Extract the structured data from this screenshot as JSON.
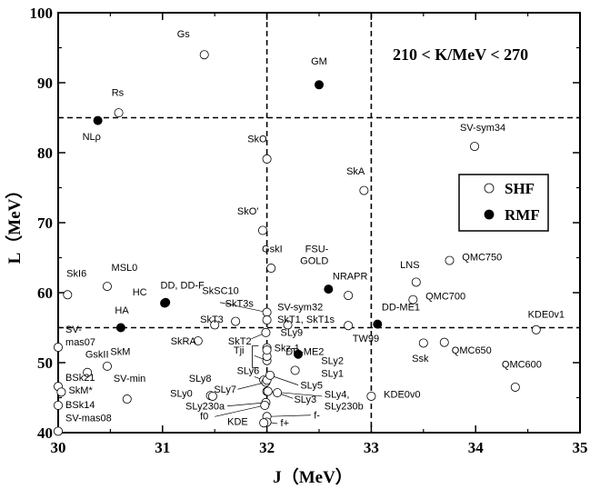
{
  "chart_data": {
    "type": "scatter",
    "annotation": "210 < K/MeV < 270",
    "xlabel": "J（MeV）",
    "ylabel": "L（MeV）",
    "xlim": [
      30,
      35
    ],
    "ylim": [
      40,
      100
    ],
    "xticks": [
      "30",
      "31",
      "32",
      "33",
      "34",
      "35"
    ],
    "yticks": [
      "40",
      "50",
      "60",
      "70",
      "80",
      "90",
      "100"
    ],
    "reference_lines": {
      "x": [
        32,
        33
      ],
      "y": [
        55,
        85
      ]
    },
    "legend": {
      "position": "right",
      "entries": [
        {
          "label": "SHF",
          "marker": "open"
        },
        {
          "label": "RMF",
          "marker": "filled"
        }
      ]
    },
    "series": [
      {
        "name": "SHF",
        "marker": "open",
        "points": [
          {
            "label": "Gs",
            "x": 31.4,
            "y": 94
          },
          {
            "label": "Rs",
            "x": 30.58,
            "y": 85.7
          },
          {
            "label": "SkO",
            "x": 32.0,
            "y": 79.1
          },
          {
            "label": "SkA",
            "x": 32.93,
            "y": 74.6
          },
          {
            "label": "SV-sym34",
            "x": 33.99,
            "y": 80.9
          },
          {
            "label": "SkO'",
            "x": 31.96,
            "y": 68.9
          },
          {
            "label": "GskI",
            "x": 32.04,
            "y": 63.5
          },
          {
            "label": "NRAPR",
            "x": 32.78,
            "y": 59.6
          },
          {
            "label": "LNS",
            "x": 33.43,
            "y": 61.5
          },
          {
            "label": "QMC750",
            "x": 33.75,
            "y": 64.6
          },
          {
            "label": "QMC700",
            "x": 33.4,
            "y": 59
          },
          {
            "label": "SkI6",
            "x": 30.09,
            "y": 59.7
          },
          {
            "label": "MSL0",
            "x": 30.47,
            "y": 60.9
          },
          {
            "label": "SkSC10",
            "x": 32.0,
            "y": 57.2
          },
          {
            "label": "SV-sym32",
            "x": 32.0,
            "y": 56.1
          },
          {
            "label": "SkT1",
            "x": 32.2,
            "y": 55.4
          },
          {
            "label": "SkT3s",
            "x": 31.7,
            "y": 55.9
          },
          {
            "label": "SkT3",
            "x": 31.5,
            "y": 55.4
          },
          {
            "label": "SkRA",
            "x": 31.34,
            "y": 53.1
          },
          {
            "label": "SkT2",
            "x": 31.99,
            "y": 54.3
          },
          {
            "label": "Tji",
            "x": 32.0,
            "y": 50.3
          },
          {
            "label": "Skz-1",
            "x": 32.0,
            "y": 50.9
          },
          {
            "label": "SkT1s",
            "x": 32.0,
            "y": 52.1
          },
          {
            "label": "SLy9",
            "x": 32.0,
            "y": 51.8
          },
          {
            "label": "SV-mas07",
            "x": 30.0,
            "y": 52.2
          },
          {
            "label": "GskII",
            "x": 30.28,
            "y": 48.6
          },
          {
            "label": "SkM",
            "x": 30.47,
            "y": 49.5
          },
          {
            "label": "SV-min",
            "x": 30.66,
            "y": 44.8
          },
          {
            "label": "BSk21",
            "x": 30.0,
            "y": 46.6
          },
          {
            "label": "SkM*",
            "x": 30.03,
            "y": 45.8
          },
          {
            "label": "BSk14",
            "x": 30.0,
            "y": 43.9
          },
          {
            "label": "SV-mas08",
            "x": 30.0,
            "y": 40.2
          },
          {
            "label": "SLy8",
            "x": 31.46,
            "y": 45.3
          },
          {
            "label": "SLy0",
            "x": 31.48,
            "y": 45.2
          },
          {
            "label": "SLy6",
            "x": 31.97,
            "y": 47.5
          },
          {
            "label": "SLy7",
            "x": 31.99,
            "y": 47.2
          },
          {
            "label": "SLy2",
            "x": 32.0,
            "y": 47.5
          },
          {
            "label": "SLy5",
            "x": 32.03,
            "y": 48.2
          },
          {
            "label": "SLy1",
            "x": 32.27,
            "y": 48.9
          },
          {
            "label": "SLy3",
            "x": 32.1,
            "y": 45.7
          },
          {
            "label": "SLy4",
            "x": 32.0,
            "y": 45.9
          },
          {
            "label": "SLy230a",
            "x": 31.99,
            "y": 44.3
          },
          {
            "label": "SLy230b",
            "x": 32.01,
            "y": 45.9
          },
          {
            "label": "f0",
            "x": 31.98,
            "y": 43.9
          },
          {
            "label": "f-",
            "x": 32.0,
            "y": 42.3
          },
          {
            "label": "f+",
            "x": 32.0,
            "y": 41.5
          },
          {
            "label": "KDE",
            "x": 31.97,
            "y": 41.4
          },
          {
            "label": "KDE0v0",
            "x": 33.0,
            "y": 45.2
          },
          {
            "label": "Ssk",
            "x": 33.5,
            "y": 52.8
          },
          {
            "label": "QMC650",
            "x": 33.7,
            "y": 52.9
          },
          {
            "label": "QMC600",
            "x": 34.38,
            "y": 46.5
          },
          {
            "label": "KDE0v1",
            "x": 34.58,
            "y": 54.7
          },
          {
            "label": "TW99",
            "x": 32.78,
            "y": 55.3
          }
        ]
      },
      {
        "name": "RMF",
        "marker": "filled",
        "points": [
          {
            "label": "GM",
            "x": 32.5,
            "y": 89.7
          },
          {
            "label": "NLρ",
            "x": 30.38,
            "y": 84.6
          },
          {
            "label": "HC",
            "x": 31.02,
            "y": 58.5
          },
          {
            "label": "DD, DD-F",
            "x": 31.03,
            "y": 58.6
          },
          {
            "label": "HA",
            "x": 30.6,
            "y": 55
          },
          {
            "label": "FSU-GOLD",
            "x": 32.59,
            "y": 60.5
          },
          {
            "label": "DD-ME1",
            "x": 33.06,
            "y": 55.5
          },
          {
            "label": "DD-ME2",
            "x": 32.3,
            "y": 51.2
          }
        ]
      }
    ]
  },
  "labels": [
    {
      "text": "Gs",
      "x": 31.2,
      "y": 96.5,
      "anchor": "middle"
    },
    {
      "text": "GM",
      "x": 32.5,
      "y": 92.6,
      "anchor": "middle"
    },
    {
      "text": "Rs",
      "x": 30.57,
      "y": 88.1,
      "anchor": "middle"
    },
    {
      "text": "NLρ",
      "x": 30.32,
      "y": 81.8,
      "anchor": "middle"
    },
    {
      "text": "SkO",
      "x": 32.0,
      "y": 81.5,
      "anchor": "end"
    },
    {
      "text": "SkA",
      "x": 32.85,
      "y": 76.9,
      "anchor": "middle"
    },
    {
      "text": "SV-sym34",
      "x": 33.85,
      "y": 83.1,
      "anchor": "start"
    },
    {
      "text": "SkO'",
      "x": 31.92,
      "y": 71.2,
      "anchor": "end"
    },
    {
      "text": "GskI",
      "x": 32.05,
      "y": 65.8,
      "anchor": "middle"
    },
    {
      "text": "FSU-",
      "x": 32.59,
      "y": 65.8,
      "anchor": "end"
    },
    {
      "text": "GOLD",
      "x": 32.59,
      "y": 64.1,
      "anchor": "end"
    },
    {
      "text": "NRAPR",
      "x": 32.63,
      "y": 61.9,
      "anchor": "start"
    },
    {
      "text": "LNS",
      "x": 33.37,
      "y": 63.5,
      "anchor": "middle"
    },
    {
      "text": "QMC750",
      "x": 33.87,
      "y": 64.6,
      "anchor": "start"
    },
    {
      "text": "QMC700",
      "x": 33.52,
      "y": 59.0,
      "anchor": "start"
    },
    {
      "text": "SkI6",
      "x": 30.08,
      "y": 62.3,
      "anchor": "start"
    },
    {
      "text": "MSL0",
      "x": 30.51,
      "y": 63.1,
      "anchor": "start"
    },
    {
      "text": "HC",
      "x": 30.85,
      "y": 59.6,
      "anchor": "end"
    },
    {
      "text": "DD, DD-F",
      "x": 30.98,
      "y": 60.6,
      "anchor": "start"
    },
    {
      "text": "SkSC10",
      "x": 31.38,
      "y": 59.8,
      "anchor": "start"
    },
    {
      "text": "SkT3s",
      "x": 31.6,
      "y": 58.0,
      "anchor": "start"
    },
    {
      "text": "SkT3",
      "x": 31.36,
      "y": 55.7,
      "anchor": "start"
    },
    {
      "text": "SV-sym32",
      "x": 32.1,
      "y": 57.5,
      "anchor": "start"
    },
    {
      "text": "SkT1, SkT1s",
      "x": 32.1,
      "y": 55.7,
      "anchor": "start"
    },
    {
      "text": "DD-ME1",
      "x": 33.1,
      "y": 57.5,
      "anchor": "start"
    },
    {
      "text": "HA",
      "x": 30.61,
      "y": 57.0,
      "anchor": "middle"
    },
    {
      "text": "SkRA",
      "x": 31.2,
      "y": 52.6,
      "anchor": "middle"
    },
    {
      "text": "SkT2",
      "x": 31.74,
      "y": 52.6,
      "anchor": "middle"
    },
    {
      "text": "SLy9",
      "x": 32.13,
      "y": 53.8,
      "anchor": "start"
    },
    {
      "text": "TW99",
      "x": 32.82,
      "y": 53.0,
      "anchor": "start"
    },
    {
      "text": "KDE0v1",
      "x": 34.5,
      "y": 56.4,
      "anchor": "start"
    },
    {
      "text": "SV-",
      "x": 30.07,
      "y": 54.3,
      "anchor": "start"
    },
    {
      "text": "mas07",
      "x": 30.07,
      "y": 52.5,
      "anchor": "start"
    },
    {
      "text": "Tji",
      "x": 31.68,
      "y": 51.3,
      "anchor": "start"
    },
    {
      "text": "Skz-1",
      "x": 32.07,
      "y": 51.6,
      "anchor": "start"
    },
    {
      "text": "DD-ME2",
      "x": 32.18,
      "y": 51.1,
      "anchor": "start"
    },
    {
      "text": "GskII",
      "x": 30.26,
      "y": 50.7,
      "anchor": "start"
    },
    {
      "text": "SkM",
      "x": 30.5,
      "y": 51.1,
      "anchor": "start"
    },
    {
      "text": "SV-min",
      "x": 30.53,
      "y": 47.3,
      "anchor": "start"
    },
    {
      "text": "Ssk",
      "x": 33.47,
      "y": 50.1,
      "anchor": "middle"
    },
    {
      "text": "QMC650",
      "x": 33.77,
      "y": 51.3,
      "anchor": "start"
    },
    {
      "text": "QMC600",
      "x": 34.25,
      "y": 49.3,
      "anchor": "start"
    },
    {
      "text": "BSk21",
      "x": 30.07,
      "y": 47.4,
      "anchor": "start"
    },
    {
      "text": "SkM*",
      "x": 30.1,
      "y": 45.6,
      "anchor": "start"
    },
    {
      "text": "BSk14",
      "x": 30.07,
      "y": 43.5,
      "anchor": "start"
    },
    {
      "text": "SV-mas08",
      "x": 30.07,
      "y": 41.6,
      "anchor": "start"
    },
    {
      "text": "SLy8",
      "x": 31.36,
      "y": 47.3,
      "anchor": "middle"
    },
    {
      "text": "SLy0",
      "x": 31.18,
      "y": 45.1,
      "anchor": "middle"
    },
    {
      "text": "SLy6",
      "x": 31.82,
      "y": 48.4,
      "anchor": "middle"
    },
    {
      "text": "SLy7",
      "x": 31.6,
      "y": 45.7,
      "anchor": "middle"
    },
    {
      "text": "SLy230a",
      "x": 31.22,
      "y": 43.3,
      "anchor": "start"
    },
    {
      "text": "f0",
      "x": 31.4,
      "y": 41.9,
      "anchor": "middle"
    },
    {
      "text": "KDE",
      "x": 31.72,
      "y": 41.1,
      "anchor": "middle"
    },
    {
      "text": "f+",
      "x": 32.13,
      "y": 40.9,
      "anchor": "start"
    },
    {
      "text": "f-",
      "x": 32.45,
      "y": 42.0,
      "anchor": "start"
    },
    {
      "text": "SLy2",
      "x": 32.52,
      "y": 49.8,
      "anchor": "start"
    },
    {
      "text": "SLy1",
      "x": 32.52,
      "y": 48.0,
      "anchor": "start"
    },
    {
      "text": "SLy5",
      "x": 32.32,
      "y": 46.3,
      "anchor": "start"
    },
    {
      "text": "SLy3",
      "x": 32.26,
      "y": 44.3,
      "anchor": "start"
    },
    {
      "text": "SLy4,",
      "x": 32.55,
      "y": 45.0,
      "anchor": "start"
    },
    {
      "text": "SLy230b",
      "x": 32.55,
      "y": 43.3,
      "anchor": "start"
    },
    {
      "text": "KDE0v0",
      "x": 33.12,
      "y": 45.0,
      "anchor": "start"
    }
  ]
}
